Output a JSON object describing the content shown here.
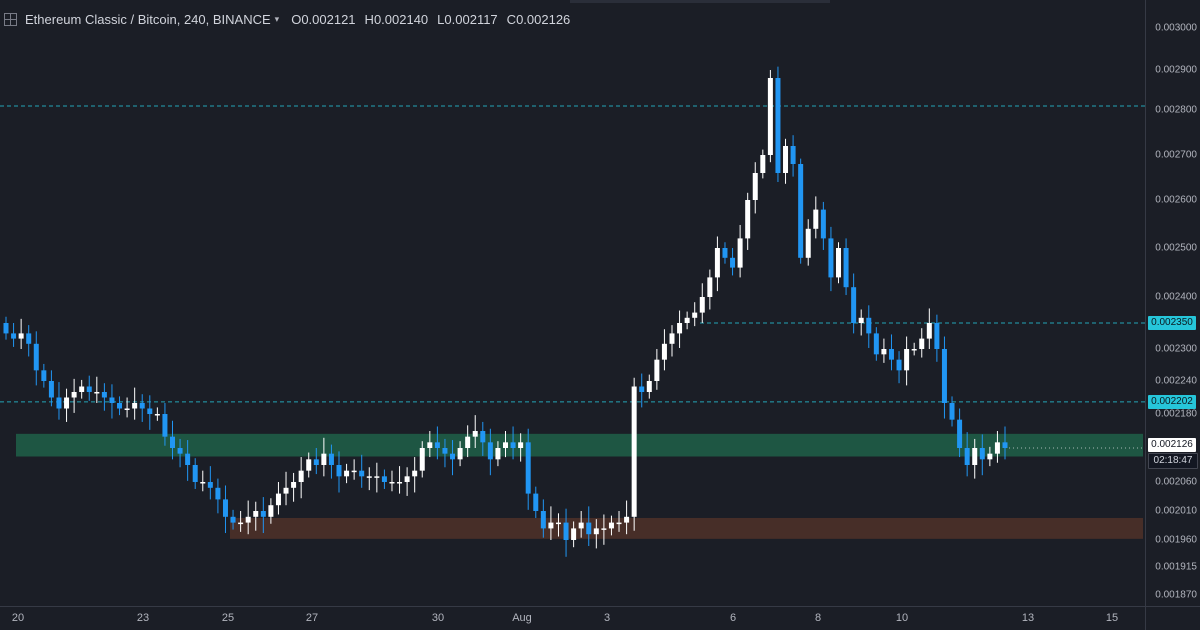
{
  "legend": {
    "title": "Ethereum Classic / Bitcoin, 240, BINANCE",
    "open_key": "O",
    "open": "0.002121",
    "high_key": "H",
    "high": "0.002140",
    "low_key": "L",
    "low": "0.002117",
    "close_key": "C",
    "close": "0.002126",
    "caret_icon": "chevron-down-icon",
    "settings_icon": "crosshair-box-icon"
  },
  "price_axis": {
    "labels": [
      {
        "text": "0.003000",
        "v": 0.003
      },
      {
        "text": "0.002900",
        "v": 0.0029
      },
      {
        "text": "0.002800",
        "v": 0.0028
      },
      {
        "text": "0.002700",
        "v": 0.0027
      },
      {
        "text": "0.002600",
        "v": 0.0026
      },
      {
        "text": "0.002500",
        "v": 0.0025
      },
      {
        "text": "0.002400",
        "v": 0.0024
      },
      {
        "text": "0.002300",
        "v": 0.0023
      },
      {
        "text": "0.002240",
        "v": 0.00224
      },
      {
        "text": "0.002180",
        "v": 0.00218
      },
      {
        "text": "0.002060",
        "v": 0.00206
      },
      {
        "text": "0.002010",
        "v": 0.00201
      },
      {
        "text": "0.001960",
        "v": 0.00196
      },
      {
        "text": "0.001915",
        "v": 0.001915
      },
      {
        "text": "0.001870",
        "v": 0.00187
      }
    ],
    "tags": [
      {
        "text": "0.002350",
        "v": 0.00235,
        "bg": "#26c6da",
        "fg": "#0b1a20"
      },
      {
        "text": "0.002202",
        "v": 0.002202,
        "bg": "#26c6da",
        "fg": "#0b1a20"
      },
      {
        "text": "0.002126",
        "v": 0.002126,
        "bg": "#ffffff",
        "fg": "#131722"
      }
    ],
    "countdown": "02:18:47"
  },
  "time_axis": [
    "20",
    "23",
    "25",
    "27",
    "30",
    "Aug",
    "3",
    "6",
    "8",
    "10",
    "13",
    "15"
  ],
  "levels": [
    {
      "name": "resistance-line-0.00281",
      "v": 0.00281,
      "from": 0
    },
    {
      "name": "resistance-line-0.00235",
      "v": 0.00235,
      "from": 0.6
    },
    {
      "name": "support-line-0.002202",
      "v": 0.002202,
      "from": 0
    }
  ],
  "zones": [
    {
      "name": "green-support-zone",
      "top": 0.002145,
      "bottom": 0.002105,
      "color": "#1f5a45"
    },
    {
      "name": "red-demand-zone",
      "top": 0.001998,
      "bottom": 0.001962,
      "color": "#4a2f28"
    }
  ],
  "colors": {
    "bull": "#ffffff",
    "bear": "#2196f3",
    "background": "#1b1e26",
    "level_line": "#26c6da"
  },
  "chart_data": {
    "type": "candlestick",
    "symbol": "Ethereum Classic / Bitcoin",
    "interval": "240",
    "exchange": "BINANCE",
    "ylim": [
      0.00185,
      0.00302
    ],
    "price_scale": "nonlinear",
    "anchor_points": [
      {
        "price": 0.003,
        "px": 28
      },
      {
        "price": 0.0029,
        "px": 70
      },
      {
        "price": 0.0028,
        "px": 110
      },
      {
        "price": 0.0027,
        "px": 155
      },
      {
        "price": 0.0026,
        "px": 200
      },
      {
        "price": 0.0025,
        "px": 248
      },
      {
        "price": 0.0024,
        "px": 297
      },
      {
        "price": 0.0023,
        "px": 349
      },
      {
        "price": 0.00224,
        "px": 381
      },
      {
        "price": 0.00218,
        "px": 414
      },
      {
        "price": 0.00206,
        "px": 482
      },
      {
        "price": 0.00201,
        "px": 511
      },
      {
        "price": 0.00196,
        "px": 540
      },
      {
        "price": 0.001915,
        "px": 567
      },
      {
        "price": 0.00187,
        "px": 595
      }
    ],
    "close_path": [
      0.00233,
      0.00232,
      0.00233,
      0.00231,
      0.00226,
      0.00224,
      0.00221,
      0.00219,
      0.00221,
      0.00222,
      0.00223,
      0.00222,
      0.00222,
      0.00221,
      0.0022,
      0.00219,
      0.00219,
      0.0022,
      0.00219,
      0.00218,
      0.00218,
      0.00214,
      0.00212,
      0.00211,
      0.00209,
      0.00206,
      0.00206,
      0.00205,
      0.00203,
      0.002,
      0.00199,
      0.00199,
      0.002,
      0.00201,
      0.002,
      0.00202,
      0.00204,
      0.00205,
      0.00206,
      0.00208,
      0.0021,
      0.00209,
      0.00211,
      0.00209,
      0.00207,
      0.00208,
      0.00208,
      0.00207,
      0.00207,
      0.00207,
      0.00206,
      0.00206,
      0.00206,
      0.00207,
      0.00208,
      0.00212,
      0.00213,
      0.00212,
      0.00211,
      0.0021,
      0.00212,
      0.00214,
      0.00215,
      0.00213,
      0.0021,
      0.00212,
      0.00213,
      0.00212,
      0.00213,
      0.00204,
      0.00201,
      0.00198,
      0.00199,
      0.00199,
      0.00196,
      0.00198,
      0.00199,
      0.00197,
      0.00198,
      0.00198,
      0.00199,
      0.00199,
      0.002,
      0.00223,
      0.00222,
      0.00224,
      0.00228,
      0.00231,
      0.00233,
      0.00235,
      0.00236,
      0.00237,
      0.0024,
      0.00244,
      0.0025,
      0.00248,
      0.00246,
      0.00252,
      0.0026,
      0.00266,
      0.0027,
      0.00288,
      0.00266,
      0.00272,
      0.00268,
      0.00248,
      0.00254,
      0.00258,
      0.00252,
      0.00244,
      0.0025,
      0.00242,
      0.00235,
      0.00236,
      0.00233,
      0.00229,
      0.0023,
      0.00228,
      0.00226,
      0.0023,
      0.0023,
      0.00232,
      0.00235,
      0.0023,
      0.0022,
      0.00217,
      0.00212,
      0.00209,
      0.00212,
      0.0021,
      0.00211,
      0.00213,
      0.00212
    ]
  }
}
